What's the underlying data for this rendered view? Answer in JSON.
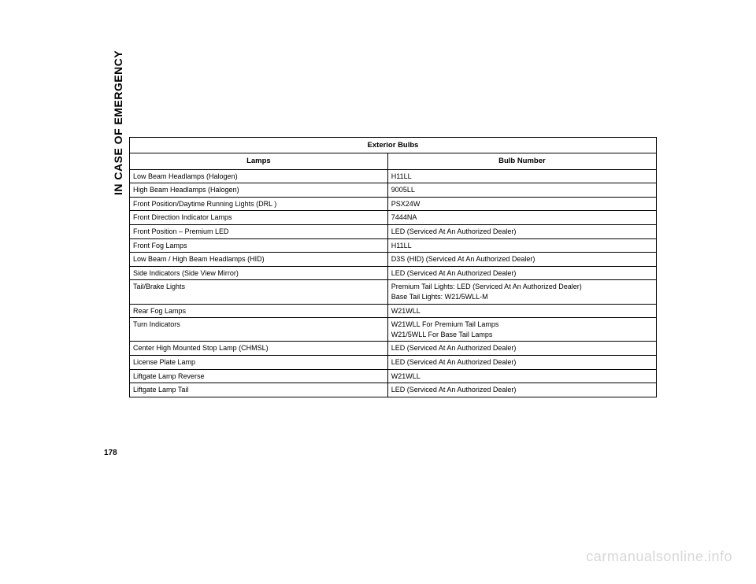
{
  "section_label": "IN CASE OF EMERGENCY",
  "page_number": "178",
  "watermark": "carmanualsonline.info",
  "table": {
    "title": "Exterior Bulbs",
    "col1_header": "Lamps",
    "col2_header": "Bulb Number",
    "rows": [
      {
        "lamp": "Low Beam Headlamps (Halogen)",
        "bulb": "H11LL"
      },
      {
        "lamp": "High Beam Headlamps (Halogen)",
        "bulb": "9005LL"
      },
      {
        "lamp": "Front Position/Daytime Running Lights (DRL )",
        "bulb": "PSX24W"
      },
      {
        "lamp": "Front Direction Indicator Lamps",
        "bulb": "7444NA"
      },
      {
        "lamp": "Front Position – Premium LED",
        "bulb": "LED (Serviced At An Authorized Dealer)"
      },
      {
        "lamp": "Front Fog Lamps",
        "bulb": "H11LL"
      },
      {
        "lamp": "Low Beam / High Beam Headlamps (HID)",
        "bulb": "D3S (HID) (Serviced At An Authorized Dealer)"
      },
      {
        "lamp": "Side Indicators (Side View Mirror)",
        "bulb": "LED (Serviced At An Authorized Dealer)"
      },
      {
        "lamp": "Tail/Brake Lights",
        "bulb": "Premium Tail Lights: LED (Serviced At An Authorized Dealer)\nBase Tail Lights: W21/5WLL-M"
      },
      {
        "lamp": "Rear Fog Lamps",
        "bulb": "W21WLL"
      },
      {
        "lamp": "Turn Indicators",
        "bulb": "W21WLL For Premium Tail Lamps\nW21/5WLL For Base Tail Lamps"
      },
      {
        "lamp": "Center High Mounted Stop Lamp (CHMSL)",
        "bulb": "LED (Serviced At An Authorized Dealer)"
      },
      {
        "lamp": "License Plate Lamp",
        "bulb": "LED (Serviced At An Authorized Dealer)"
      },
      {
        "lamp": "Liftgate Lamp Reverse",
        "bulb": "W21WLL"
      },
      {
        "lamp": "Liftgate Lamp Tail",
        "bulb": "LED (Serviced At An Authorized Dealer)"
      }
    ]
  }
}
